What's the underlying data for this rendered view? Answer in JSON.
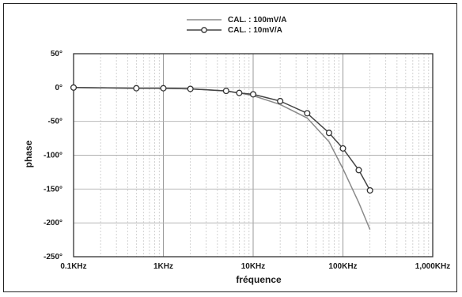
{
  "chart_data": {
    "type": "line",
    "title": "",
    "xlabel": "fréquence",
    "ylabel": "phase",
    "x_scale": "log",
    "xlim": [
      0.1,
      1000
    ],
    "ylim": [
      -250,
      50
    ],
    "x_tick_values": [
      0.1,
      1,
      10,
      100,
      1000
    ],
    "x_tick_labels": [
      "0.1KHz",
      "1KHz",
      "10KHz",
      "100KHz",
      "1,000KHz"
    ],
    "y_tick_values": [
      50,
      0,
      -50,
      -100,
      -150,
      -200,
      -250
    ],
    "y_tick_labels": [
      "50°",
      "0°",
      "-50°",
      "-100°",
      "-150°",
      "-200°",
      "-250°"
    ],
    "grid": true,
    "legend_position": "top-center",
    "series": [
      {
        "name": "CAL. : 100mV/A",
        "marker": "none",
        "color": "#8a8a8a",
        "x": [
          0.1,
          0.5,
          1,
          2,
          5,
          7,
          10,
          20,
          40,
          70,
          100,
          150,
          200
        ],
        "y": [
          0,
          -1,
          -1,
          -2,
          -5,
          -8,
          -12,
          -25,
          -45,
          -80,
          -120,
          -170,
          -210
        ]
      },
      {
        "name": "CAL. : 10mV/A",
        "marker": "circle",
        "color": "#444444",
        "x": [
          0.1,
          0.5,
          1,
          2,
          5,
          7,
          10,
          20,
          40,
          70,
          100,
          150,
          200
        ],
        "y": [
          0,
          -1,
          -1,
          -2,
          -5,
          -8,
          -10,
          -20,
          -38,
          -67,
          -90,
          -122,
          -152
        ]
      }
    ]
  }
}
